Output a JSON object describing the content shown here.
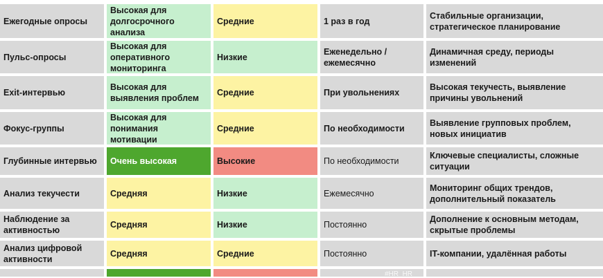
{
  "rows": [
    {
      "method": "Ежегодные опросы",
      "depth": "Высокая для долгосрочного анализа",
      "cost": "Средние",
      "frequency": "1 раз в год",
      "use_case": "Стабильные организации, стратегическое планирование"
    },
    {
      "method": "Пульс-опросы",
      "depth": "Высокая для оперативного мониторинга",
      "cost": "Низкие",
      "frequency": "Еженедельно / ежемесячно",
      "use_case": "Динамичная среду, периоды изменений"
    },
    {
      "method": "Exit-интервью",
      "depth": "Высокая для выявления проблем",
      "cost": "Средние",
      "frequency": "При увольнениях",
      "use_case": "Высокая текучесть, выявление причины увольнений"
    },
    {
      "method": "Фокус-группы",
      "depth": "Высокая для понимания мотивации",
      "cost": "Средние",
      "frequency": "По необходимости",
      "use_case": "Выявление групповых проблем, новых инициатив"
    },
    {
      "method": "Глубинные интервью",
      "depth": "Очень высокая",
      "cost": "Высокие",
      "frequency": "По необходимости",
      "use_case": "Ключевые специалисты, сложные ситуации"
    },
    {
      "method": "Анализ текучести",
      "depth": "Средняя",
      "cost": "Низкие",
      "frequency": "Ежемесячно",
      "use_case": "Мониторинг общих трендов, дополнительный показатель"
    },
    {
      "method": "Наблюдение за активностью",
      "depth": "Средняя",
      "cost": "Низкие",
      "frequency": "Постоянно",
      "use_case": "Дополнение к основным методам, скрытые проблемы"
    },
    {
      "method": "Анализ цифровой активности",
      "depth": "Средняя",
      "cost": "Средние",
      "frequency": "Постоянно",
      "use_case": "IT-компании, удалённая работы"
    },
    {
      "method": "",
      "depth": "",
      "cost": "",
      "frequency": "",
      "use_case": ""
    }
  ],
  "watermark": "#HR_HR",
  "colors": {
    "gray": "#d9d9d9",
    "light_green": "#c6efce",
    "yellow": "#fdf3a3",
    "dark_green": "#4ea72e",
    "red": "#f28b82"
  }
}
